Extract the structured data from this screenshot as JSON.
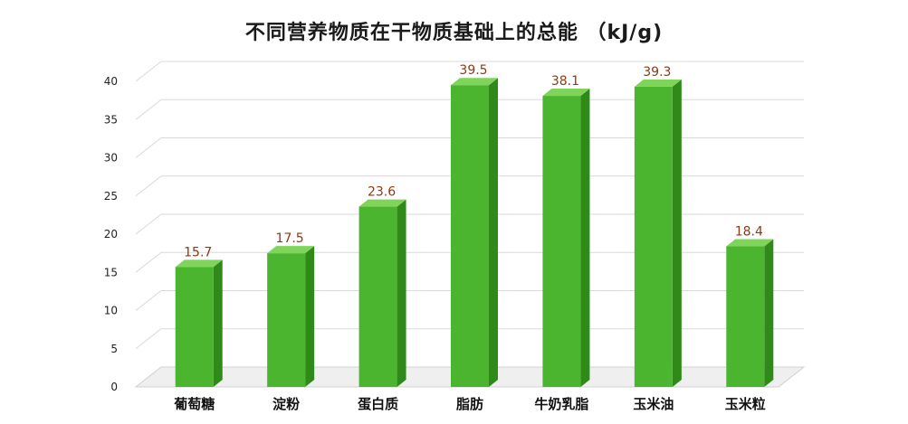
{
  "chart_data": {
    "type": "bar",
    "title": "不同营养物质在干物质基础上的总能 （kJ/g)",
    "xlabel": "",
    "ylabel": "",
    "categories": [
      "葡萄糖",
      "淀粉",
      "蛋白质",
      "脂肪",
      "牛奶乳脂",
      "玉米油",
      "玉米粒"
    ],
    "values": [
      15.7,
      17.5,
      23.6,
      39.5,
      38.1,
      39.3,
      18.4
    ],
    "data_labels": [
      "15.7",
      "17.5",
      "23.6",
      "39.5",
      "38.1",
      "39.3",
      "18.4"
    ],
    "yticks": [
      "0",
      "5",
      "10",
      "15",
      "20",
      "25",
      "30",
      "35",
      "40"
    ],
    "ylim": [
      0,
      40
    ],
    "grid": true,
    "legend": "none",
    "colors": {
      "bar_front": "#4cb52f",
      "bar_side": "#2f8a1a",
      "bar_top": "#7fd45a",
      "data_label": "#8a3a14",
      "grid": "#d9d9d9",
      "floor": "#d0d0d0"
    }
  }
}
